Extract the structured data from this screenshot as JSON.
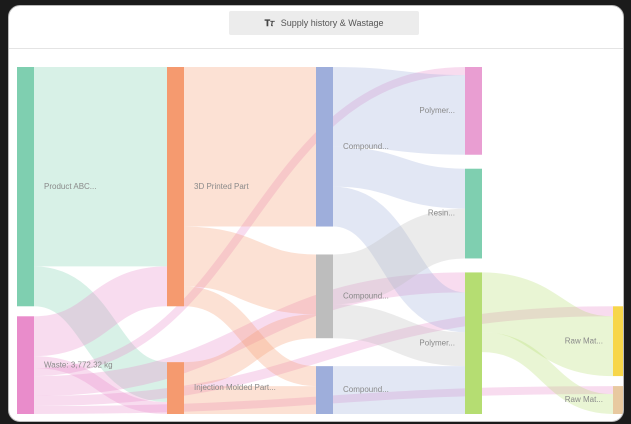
{
  "chart_data": {
    "type": "sankey",
    "title": "Supply history & Wastage",
    "nodes": [
      {
        "name": "Product ABC...",
        "color": "#7fcfb0"
      },
      {
        "name": "Waste: 3,772.32 kg",
        "color": "#e98ccb"
      },
      {
        "name": "3D Printed Part",
        "color": "#f59a6f"
      },
      {
        "name": "Injection Molded Part...",
        "color": "#f59a6f"
      },
      {
        "name": "Compound...",
        "color": "#9eaedb"
      },
      {
        "name": "Compound...",
        "color": "#bdbdbd"
      },
      {
        "name": "Compound...",
        "color": "#9eaedb"
      },
      {
        "name": "Polymer...",
        "color": "#e99ed2"
      },
      {
        "name": "Resin...",
        "color": "#7fcfb0"
      },
      {
        "name": "Polymer...",
        "color": "#b5dd72"
      },
      {
        "name": "Raw Mat...",
        "color": "#f7d64a"
      },
      {
        "name": "Raw Mat...",
        "color": "#e8c9a0"
      }
    ],
    "columns": [
      [
        0,
        1
      ],
      [
        2,
        3
      ],
      [
        4,
        5,
        6
      ],
      [
        7,
        8,
        9
      ],
      [
        10,
        11
      ]
    ],
    "links": [
      {
        "source": 0,
        "target": 2,
        "value": 200
      },
      {
        "source": 0,
        "target": 3,
        "value": 40
      },
      {
        "source": 1,
        "target": 2,
        "value": 40
      },
      {
        "source": 1,
        "target": 3,
        "value": 12
      },
      {
        "source": 1,
        "target": 7,
        "value": 8
      },
      {
        "source": 1,
        "target": 9,
        "value": 20
      },
      {
        "source": 1,
        "target": 10,
        "value": 10
      },
      {
        "source": 1,
        "target": 11,
        "value": 8
      },
      {
        "source": 2,
        "target": 4,
        "value": 160
      },
      {
        "source": 2,
        "target": 5,
        "value": 60
      },
      {
        "source": 2,
        "target": 6,
        "value": 20
      },
      {
        "source": 3,
        "target": 5,
        "value": 24
      },
      {
        "source": 3,
        "target": 6,
        "value": 28
      },
      {
        "source": 4,
        "target": 7,
        "value": 80
      },
      {
        "source": 4,
        "target": 8,
        "value": 40
      },
      {
        "source": 4,
        "target": 9,
        "value": 40
      },
      {
        "source": 5,
        "target": 8,
        "value": 50
      },
      {
        "source": 5,
        "target": 9,
        "value": 34
      },
      {
        "source": 6,
        "target": 9,
        "value": 48
      },
      {
        "source": 9,
        "target": 10,
        "value": 60
      },
      {
        "source": 9,
        "target": 11,
        "value": 20
      }
    ]
  }
}
